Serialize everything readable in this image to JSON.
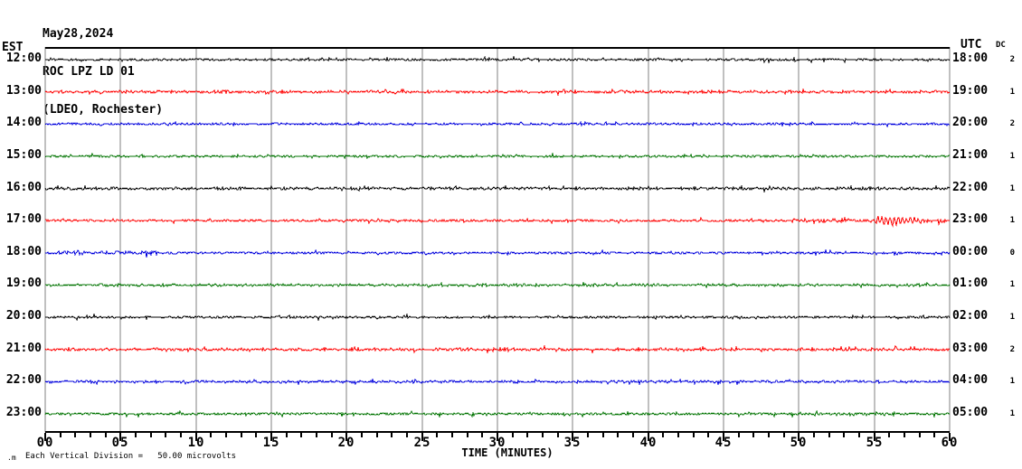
{
  "header": {
    "date": "May28,2024",
    "station_line": "ROC LPZ LD 01",
    "location_line": "(LDEO, Rochester)"
  },
  "left_axis": {
    "label": "EST"
  },
  "right_axis": {
    "label": "UTC"
  },
  "dc_column": {
    "label": "DC"
  },
  "x_axis": {
    "title": "TIME (MINUTES)",
    "tick_labels": [
      "00",
      "05",
      "10",
      "15",
      "20",
      "25",
      "30",
      "35",
      "40",
      "45",
      "50",
      "55",
      "60"
    ],
    "tick_minutes": [
      0,
      5,
      10,
      15,
      20,
      25,
      30,
      35,
      40,
      45,
      50,
      55,
      60
    ],
    "minor_tick_every_minutes": 1,
    "total_minutes": 60
  },
  "footer": {
    "watermark": ".m",
    "scale_note": "Each Vertical Division =   50.00 microvolts"
  },
  "colors": {
    "background": "#ffffff",
    "grid": "#808080",
    "axis": "#000000",
    "text": "#000000",
    "trace_cycle": [
      "#000000",
      "#ff0000",
      "#0000dd",
      "#007300"
    ]
  },
  "chart_data": {
    "type": "line",
    "title": "Helicorder seismogram, station ROC LPZ LD 01 (LDEO, Rochester), May28,2024",
    "xlabel": "TIME (MINUTES)",
    "x_range_minutes": [
      0,
      60
    ],
    "rows_are": "one 60-minute seismic trace per hour, EST on left, UTC on right, DC offset count on far right",
    "vertical_division_microvolts": 50.0,
    "rows": [
      {
        "est": "12:00",
        "utc": "18:00",
        "dc": "2",
        "color": "#000000",
        "base_amp": 1.2,
        "seed": 11,
        "events": []
      },
      {
        "est": "13:00",
        "utc": "19:00",
        "dc": "1",
        "color": "#ff0000",
        "base_amp": 1.4,
        "seed": 22,
        "events": []
      },
      {
        "est": "14:00",
        "utc": "20:00",
        "dc": "2",
        "color": "#0000dd",
        "base_amp": 1.2,
        "seed": 33,
        "events": []
      },
      {
        "est": "15:00",
        "utc": "21:00",
        "dc": "1",
        "color": "#007300",
        "base_amp": 1.2,
        "seed": 44,
        "events": []
      },
      {
        "est": "16:00",
        "utc": "22:00",
        "dc": "1",
        "color": "#000000",
        "base_amp": 1.4,
        "seed": 55,
        "events": []
      },
      {
        "est": "17:00",
        "utc": "23:00",
        "dc": "1",
        "color": "#ff0000",
        "base_amp": 1.3,
        "seed": 66,
        "events": [
          {
            "kind": "noise",
            "start_min": 49.0,
            "end_min": 55.0,
            "amp": 2.1
          },
          {
            "kind": "sine",
            "start_min": 54.9,
            "end_min": 58.6,
            "amp": 4.8,
            "period_min": 0.27
          },
          {
            "kind": "noise",
            "start_min": 55.0,
            "end_min": 60.0,
            "amp": 1.9
          }
        ]
      },
      {
        "est": "18:00",
        "utc": "00:00",
        "dc": "0",
        "color": "#0000dd",
        "base_amp": 1.3,
        "seed": 77,
        "events": [
          {
            "kind": "noise",
            "start_min": 0.5,
            "end_min": 7.5,
            "amp": 2.3
          }
        ]
      },
      {
        "est": "19:00",
        "utc": "01:00",
        "dc": "1",
        "color": "#007300",
        "base_amp": 1.3,
        "seed": 88,
        "events": []
      },
      {
        "est": "20:00",
        "utc": "02:00",
        "dc": "1",
        "color": "#000000",
        "base_amp": 1.2,
        "seed": 99,
        "events": []
      },
      {
        "est": "21:00",
        "utc": "03:00",
        "dc": "2",
        "color": "#ff0000",
        "base_amp": 1.5,
        "seed": 110,
        "events": []
      },
      {
        "est": "22:00",
        "utc": "04:00",
        "dc": "1",
        "color": "#0000dd",
        "base_amp": 1.3,
        "seed": 121,
        "events": []
      },
      {
        "est": "23:00",
        "utc": "05:00",
        "dc": "1",
        "color": "#007300",
        "base_amp": 1.4,
        "seed": 132,
        "events": [
          {
            "kind": "noise",
            "start_min": 50.0,
            "end_min": 57.0,
            "amp": 1.7
          }
        ]
      }
    ]
  }
}
